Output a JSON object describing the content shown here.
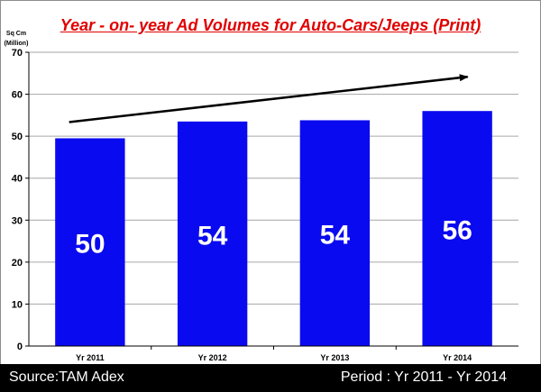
{
  "chart_data": {
    "type": "bar",
    "title": "Year - on- year Ad Volumes for Auto-Cars/Jeeps (Print)",
    "ylabel": [
      "Sq Cm",
      "(Million)"
    ],
    "categories": [
      "Yr 2011",
      "Yr 2012",
      "Yr 2013",
      "Yr 2014"
    ],
    "values": [
      49.5,
      53.5,
      53.8,
      56
    ],
    "data_labels": [
      "50",
      "54",
      "54",
      "56"
    ],
    "ylim": [
      0,
      70
    ],
    "yticks": [
      0,
      10,
      20,
      30,
      40,
      50,
      60,
      70
    ],
    "grid": true,
    "trend_arrow": true,
    "colors": {
      "bar": "#0a0af0",
      "grid": "#a6a6a6",
      "title": "#e00000"
    }
  },
  "footer": {
    "source": "Source:TAM Adex",
    "period": "Period : Yr 2011 - Yr 2014"
  }
}
